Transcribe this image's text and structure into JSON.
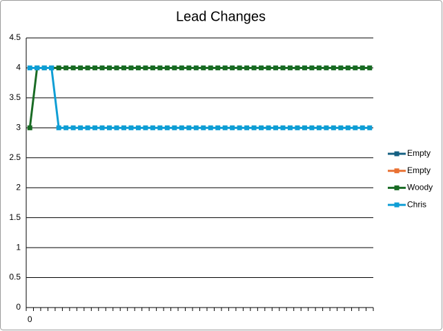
{
  "chart_data": {
    "type": "line",
    "title": "Lead Changes",
    "categories": [
      "0",
      null,
      null,
      null,
      null,
      null,
      null,
      null,
      null,
      null,
      null,
      null,
      null,
      null,
      null,
      null,
      null,
      null,
      null,
      null,
      null,
      null,
      null,
      null,
      null,
      null,
      null,
      null,
      null,
      null,
      null,
      null,
      null,
      null,
      null,
      null,
      null,
      null,
      null,
      null,
      null,
      null,
      null,
      null,
      null,
      null,
      null,
      null
    ],
    "series": [
      {
        "name": "Empty",
        "color": "#156082",
        "values": [
          null,
          null,
          null,
          null,
          null,
          null,
          null,
          null,
          null,
          null,
          null,
          null,
          null,
          null,
          null,
          null,
          null,
          null,
          null,
          null,
          null,
          null,
          null,
          null,
          null,
          null,
          null,
          null,
          null,
          null,
          null,
          null,
          null,
          null,
          null,
          null,
          null,
          null,
          null,
          null,
          null,
          null,
          null,
          null,
          null,
          null,
          null,
          null
        ]
      },
      {
        "name": "Empty",
        "color": "#E97132",
        "values": [
          null,
          null,
          null,
          null,
          null,
          null,
          null,
          null,
          null,
          null,
          null,
          null,
          null,
          null,
          null,
          null,
          null,
          null,
          null,
          null,
          null,
          null,
          null,
          null,
          null,
          null,
          null,
          null,
          null,
          null,
          null,
          null,
          null,
          null,
          null,
          null,
          null,
          null,
          null,
          null,
          null,
          null,
          null,
          null,
          null,
          null,
          null,
          null
        ]
      },
      {
        "name": "Woody",
        "color": "#196B24",
        "values": [
          3,
          4,
          4,
          4,
          4,
          4,
          4,
          4,
          4,
          4,
          4,
          4,
          4,
          4,
          4,
          4,
          4,
          4,
          4,
          4,
          4,
          4,
          4,
          4,
          4,
          4,
          4,
          4,
          4,
          4,
          4,
          4,
          4,
          4,
          4,
          4,
          4,
          4,
          4,
          4,
          4,
          4,
          4,
          4,
          4,
          4,
          4,
          4
        ]
      },
      {
        "name": "Chris",
        "color": "#0F9ED5",
        "values": [
          4,
          4,
          4,
          4,
          3,
          3,
          3,
          3,
          3,
          3,
          3,
          3,
          3,
          3,
          3,
          3,
          3,
          3,
          3,
          3,
          3,
          3,
          3,
          3,
          3,
          3,
          3,
          3,
          3,
          3,
          3,
          3,
          3,
          3,
          3,
          3,
          3,
          3,
          3,
          3,
          3,
          3,
          3,
          3,
          3,
          3,
          3,
          3
        ]
      }
    ],
    "ylim": [
      0,
      4.5
    ],
    "yticks": [
      0,
      0.5,
      1,
      1.5,
      2,
      2.5,
      3,
      3.5,
      4,
      4.5
    ],
    "grid": true,
    "legend": "right"
  }
}
